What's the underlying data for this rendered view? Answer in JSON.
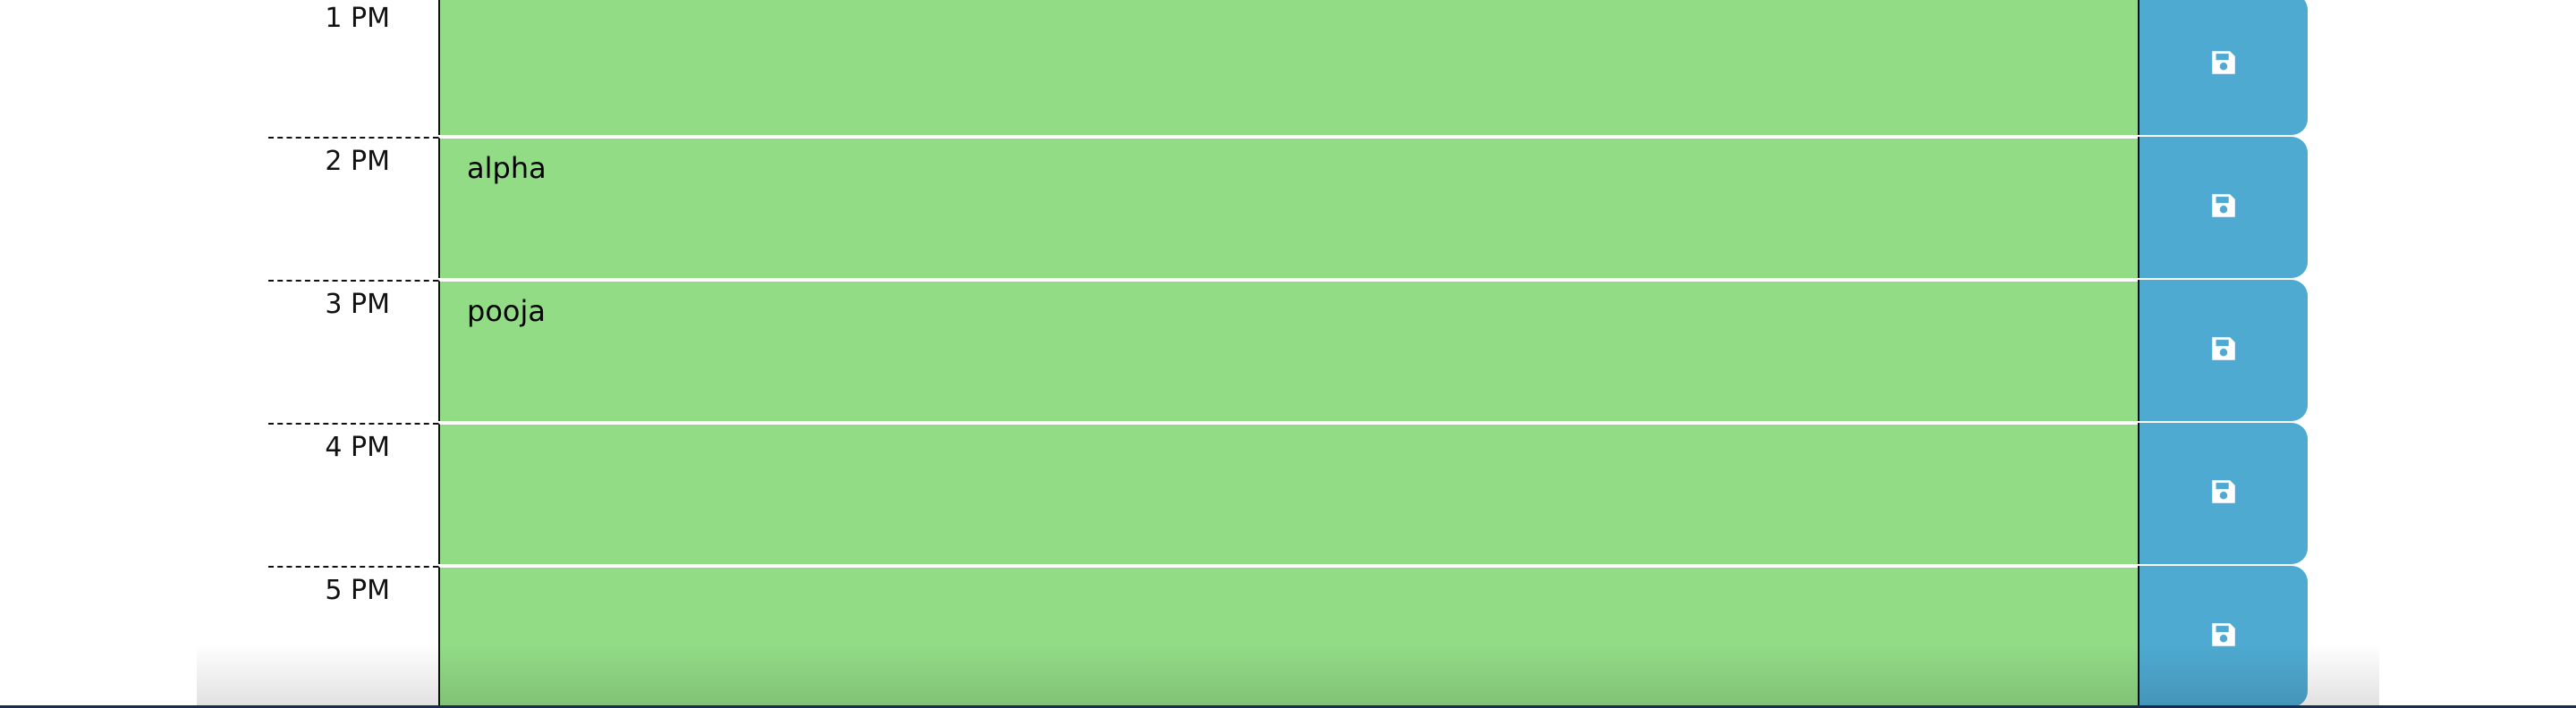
{
  "rows": [
    {
      "hour": "1 PM",
      "description": "",
      "status": "future"
    },
    {
      "hour": "2 PM",
      "description": "alpha",
      "status": "future"
    },
    {
      "hour": "3 PM",
      "description": "pooja",
      "status": "future"
    },
    {
      "hour": "4 PM",
      "description": "",
      "status": "future"
    },
    {
      "hour": "5 PM",
      "description": "",
      "status": "future"
    }
  ],
  "icons": {
    "save": "save-icon"
  },
  "colors": {
    "future": "#92dc86",
    "save_button": "#4eaad1"
  }
}
